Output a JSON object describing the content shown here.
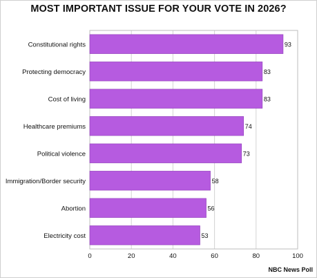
{
  "chart_data": {
    "type": "bar",
    "orientation": "horizontal",
    "title": "MOST IMPORTANT ISSUE FOR YOUR VOTE IN 2026?",
    "source": "NBC News Poll",
    "categories": [
      "Constitutional rights",
      "Protecting democracy",
      "Cost of living",
      "Healthcare premiums",
      "Political violence",
      "Immigration/Border security",
      "Abortion",
      "Electricity cost"
    ],
    "values": [
      93,
      83,
      83,
      74,
      73,
      58,
      56,
      53
    ],
    "data_labels": [
      "93",
      "83",
      "83",
      "74",
      "73",
      "58",
      "56",
      "53"
    ],
    "xlim": [
      0,
      100
    ],
    "xticks": [
      0,
      20,
      40,
      60,
      80,
      100
    ],
    "xtick_labels": [
      "0",
      "20",
      "40",
      "60",
      "80",
      "100"
    ],
    "xlabel": "",
    "ylabel": "",
    "grid": true,
    "legend": "none",
    "colors": {
      "bar": "#b65be0",
      "bar_edge": "#8e3fb8",
      "grid": "#d3d3d3",
      "text": "#111111"
    }
  }
}
